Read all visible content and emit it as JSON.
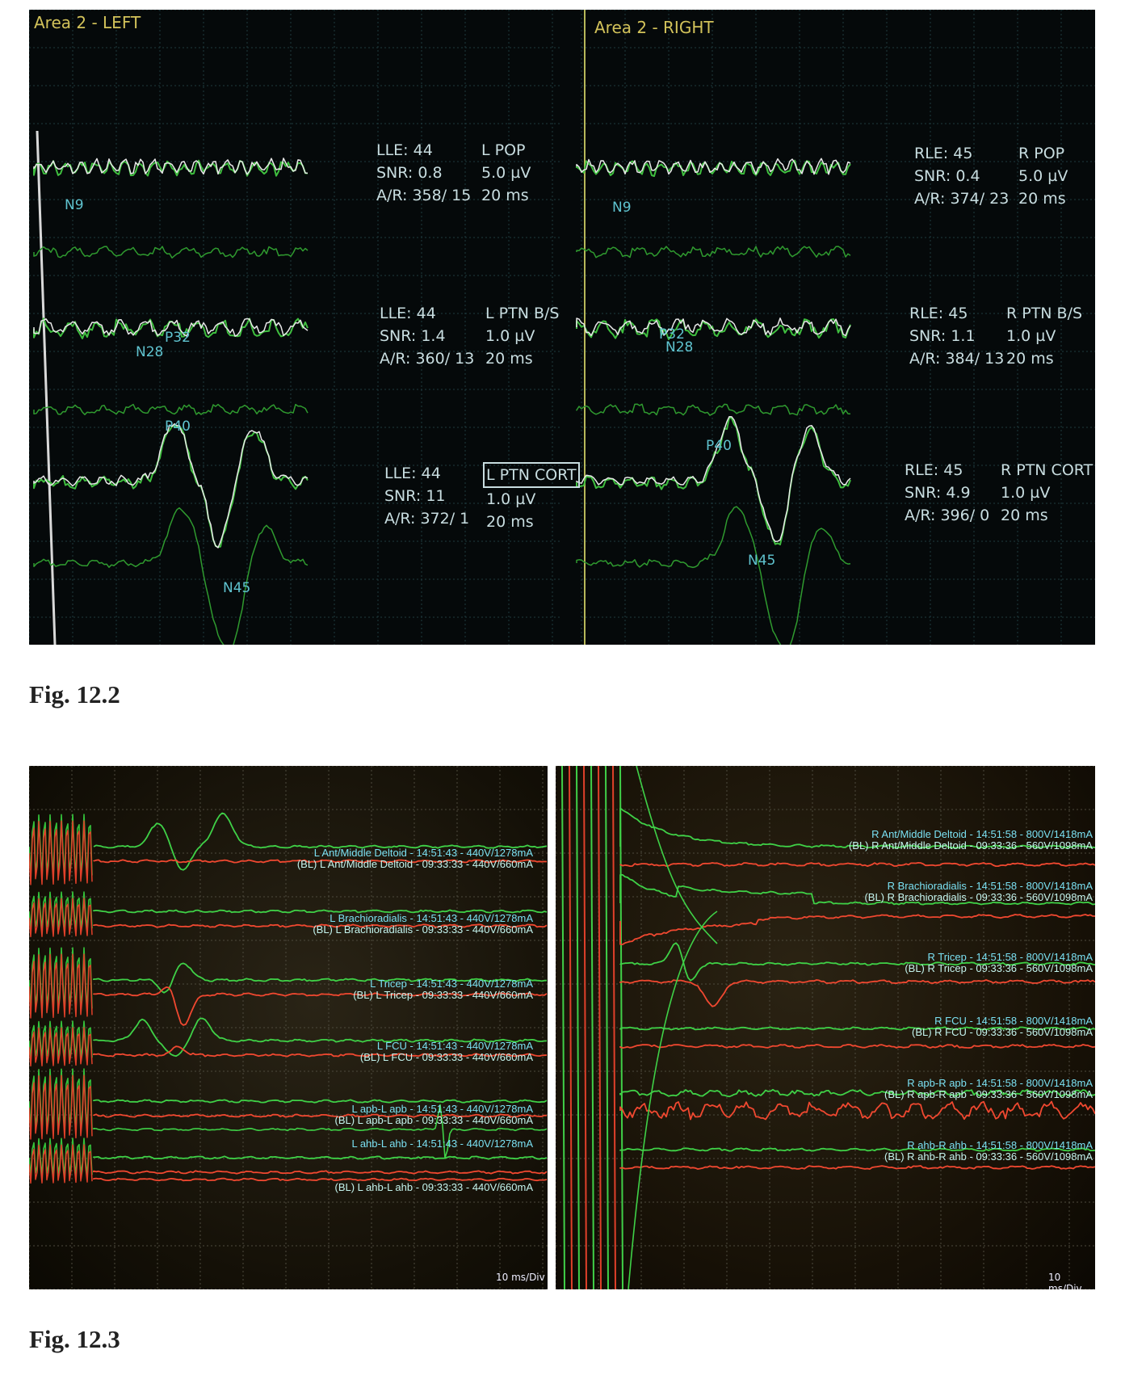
{
  "fig12_2": {
    "caption": "Fig. 12.2",
    "left_title": "Area 2 - LEFT",
    "right_title": "Area 2 - RIGHT",
    "blocks": [
      {
        "side": "left",
        "c1": [
          "LLE: 44",
          "SNR: 0.8",
          "A/R: 358/ 15"
        ],
        "c2": [
          "L POP",
          "5.0 µV",
          "20 ms"
        ]
      },
      {
        "side": "left",
        "c1": [
          "LLE: 44",
          "SNR: 1.4",
          "A/R: 360/ 13"
        ],
        "c2": [
          "L PTN B/S",
          "1.0 µV",
          "20 ms"
        ]
      },
      {
        "side": "left",
        "c1": [
          "LLE: 44",
          "SNR: 11",
          "A/R: 372/ 1"
        ],
        "c2": [
          "L PTN CORT",
          "1.0 µV",
          "20 ms"
        ]
      },
      {
        "side": "right",
        "c1": [
          "RLE: 45",
          "SNR: 0.4",
          "A/R: 374/ 23"
        ],
        "c2": [
          "R POP",
          "5.0 µV",
          "20 ms"
        ]
      },
      {
        "side": "right",
        "c1": [
          "RLE: 45",
          "SNR: 1.1",
          "A/R: 384/ 13"
        ],
        "c2": [
          "R PTN B/S",
          "1.0 µV",
          "20 ms"
        ]
      },
      {
        "side": "right",
        "c1": [
          "RLE: 45",
          "SNR: 4.9",
          "A/R: 396/ 0"
        ],
        "c2": [
          "R PTN CORT",
          "1.0 µV",
          "20 ms"
        ]
      }
    ],
    "tags": {
      "n9": "N9",
      "p40": "P40",
      "n45": "N45",
      "p32": "P32",
      "n28": "N28"
    }
  },
  "fig12_3": {
    "caption": "Fig. 12.3",
    "scale": "10 ms/Div",
    "left_channels": [
      {
        "test": "L Ant/Middle Deltoid - 14:51:43 - 440V/1278mA",
        "baseline": "(BL) L Ant/Middle Deltoid - 09:33:33 - 440V/660mA"
      },
      {
        "test": "L Brachioradialis - 14:51:43 - 440V/1278mA",
        "baseline": "(BL) L Brachioradialis - 09:33:33 - 440V/660mA"
      },
      {
        "test": "L Tricep - 14:51:43 - 440V/1278mA",
        "baseline": "(BL) L Tricep - 09:33:33 - 440V/660mA"
      },
      {
        "test": "L FCU - 14:51:43 - 440V/1278mA",
        "baseline": "(BL) L FCU - 09:33:33 - 440V/660mA"
      },
      {
        "test": "L apb-L apb - 14:51:43 - 440V/1278mA",
        "baseline": "(BL) L apb-L apb - 09:33:33 - 440V/660mA"
      },
      {
        "test": "L ahb-L ahb - 14:51:43 - 440V/1278mA",
        "baseline": "(BL) L ahb-L ahb - 09:33:33 - 440V/660mA"
      }
    ],
    "right_channels": [
      {
        "test": "R Ant/Middle Deltoid - 14:51:58 - 800V/1418mA",
        "baseline": "(BL) R Ant/Middle Deltoid - 09:33:36 - 560V/1098mA"
      },
      {
        "test": "R Brachioradialis - 14:51:58 - 800V/1418mA",
        "baseline": "(BL) R Brachioradialis - 09:33:36 - 560V/1098mA"
      },
      {
        "test": "R Tricep - 14:51:58 - 800V/1418mA",
        "baseline": "(BL) R Tricep - 09:33:36 - 560V/1098mA"
      },
      {
        "test": "R FCU - 14:51:58 - 800V/1418mA",
        "baseline": "(BL) R FCU - 09:33:36 - 560V/1098mA"
      },
      {
        "test": "R apb-R apb - 14:51:58 - 800V/1418mA",
        "baseline": "(BL) R apb-R apb - 09:33:36 - 560V/1098mA"
      },
      {
        "test": "R ahb-R ahb - 14:51:58 - 800V/1418mA",
        "baseline": "(BL) R ahb-R ahb - 09:33:36 - 560V/1098mA"
      }
    ]
  }
}
